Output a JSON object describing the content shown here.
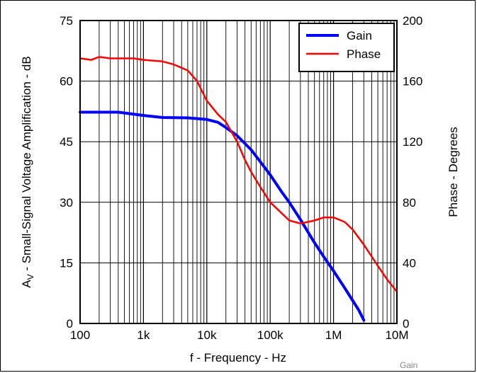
{
  "chart_data": {
    "type": "line",
    "title": "",
    "xlabel": "f - Frequency - Hz",
    "ylabel_left": {
      "main": "A",
      "sub": "V",
      "rest": " - Small-Signal Voltage Amplification - dB"
    },
    "ylabel_right": "Phase - Degrees",
    "x_scale": "log",
    "xlim": [
      100,
      10000000
    ],
    "x_ticks": [
      100,
      1000,
      10000,
      100000,
      1000000,
      10000000
    ],
    "x_tick_labels": [
      "100",
      "1k",
      "10k",
      "100k",
      "1M",
      "10M"
    ],
    "ylim_left": [
      0,
      75
    ],
    "y_left_ticks": [
      0,
      15,
      30,
      45,
      60,
      75
    ],
    "ylim_right": [
      0,
      200
    ],
    "y_right_ticks": [
      0,
      40,
      80,
      120,
      160,
      200
    ],
    "grid": true,
    "legend_position": "top-right",
    "series": [
      {
        "name": "Gain",
        "axis": "left",
        "color": "#0000ff",
        "x": [
          100,
          200,
          400,
          1000,
          2000,
          5000,
          10000,
          15000,
          20000,
          30000,
          50000,
          70000,
          100000,
          150000,
          200000,
          300000,
          500000,
          700000,
          1000000,
          1500000,
          2000000,
          2500000,
          3000000
        ],
        "y": [
          52.3,
          52.3,
          52.3,
          51.5,
          51.0,
          50.9,
          50.5,
          49.8,
          48.5,
          46.5,
          43.0,
          40.0,
          36.8,
          32.7,
          30.0,
          25.7,
          20.0,
          16.5,
          13.0,
          8.8,
          5.7,
          3.3,
          0.8
        ]
      },
      {
        "name": "Phase",
        "axis": "right",
        "color": "#ff0000",
        "x": [
          100,
          150,
          200,
          300,
          500,
          700,
          1000,
          2000,
          3000,
          5000,
          7000,
          10000,
          15000,
          20000,
          30000,
          40000,
          50000,
          70000,
          100000,
          150000,
          200000,
          300000,
          500000,
          700000,
          1000000,
          1500000,
          2000000,
          3000000,
          5000000,
          7000000,
          10000000
        ],
        "y": [
          175,
          174,
          176,
          175,
          175,
          175,
          174,
          173,
          171,
          167,
          160,
          147,
          138,
          133,
          120,
          108,
          100,
          90,
          80,
          73,
          68,
          66,
          68,
          70,
          70,
          67,
          62,
          52,
          38,
          29,
          21
        ]
      }
    ]
  },
  "legend": {
    "gain": "Gain",
    "phase": "Phase"
  },
  "footnote": "Gain"
}
